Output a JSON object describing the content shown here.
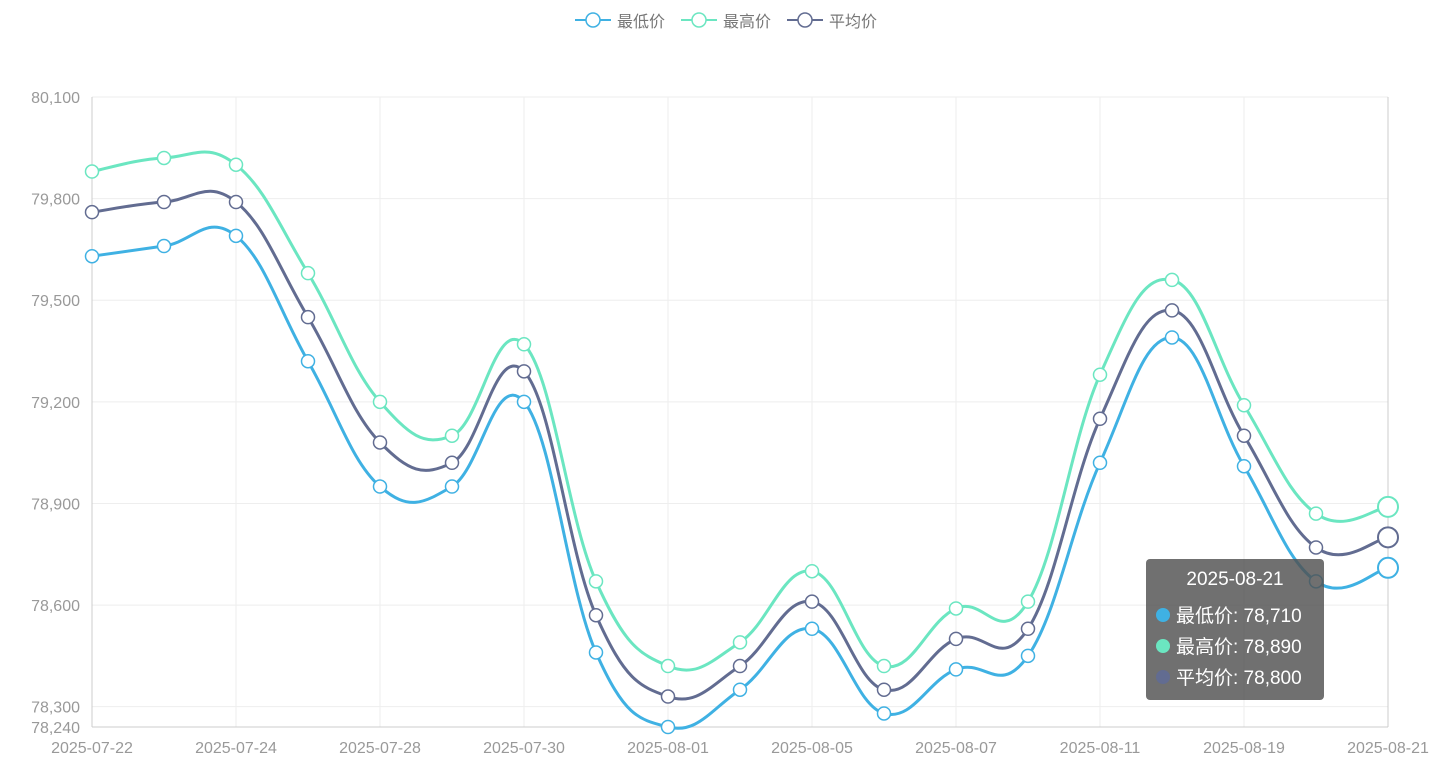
{
  "chart_data": {
    "type": "line",
    "smooth": true,
    "x": [
      "2025-07-22",
      "2025-07-23",
      "2025-07-24",
      "2025-07-25",
      "2025-07-28",
      "2025-07-29",
      "2025-07-30",
      "2025-07-31",
      "2025-08-01",
      "2025-08-04",
      "2025-08-05",
      "2025-08-06",
      "2025-08-07",
      "2025-08-08",
      "2025-08-11",
      "2025-08-18",
      "2025-08-19",
      "2025-08-20",
      "2025-08-21"
    ],
    "xticks": [
      "2025-07-22",
      "2025-07-24",
      "2025-07-28",
      "2025-07-30",
      "2025-08-01",
      "2025-08-05",
      "2025-08-07",
      "2025-08-11",
      "2025-08-19",
      "2025-08-21"
    ],
    "yticks": [
      "80,100",
      "79,800",
      "79,500",
      "79,200",
      "78,900",
      "78,600",
      "78,300",
      "78,240"
    ],
    "ylim": [
      78240,
      80100
    ],
    "grid": true,
    "legend_position": "top-center",
    "series": [
      {
        "name": "最低价",
        "color": "#3fb1e3",
        "values": [
          79630,
          79660,
          79690,
          79320,
          78950,
          78950,
          79200,
          78460,
          78240,
          78350,
          78530,
          78280,
          78410,
          78450,
          79020,
          79390,
          79010,
          78670,
          78710
        ]
      },
      {
        "name": "最高价",
        "color": "#6be6c1",
        "values": [
          79880,
          79920,
          79900,
          79580,
          79200,
          79100,
          79370,
          78670,
          78420,
          78490,
          78700,
          78420,
          78590,
          78610,
          79280,
          79560,
          79190,
          78870,
          78890
        ]
      },
      {
        "name": "平均价",
        "color": "#626c91",
        "values": [
          79760,
          79790,
          79790,
          79450,
          79080,
          79020,
          79290,
          78570,
          78330,
          78420,
          78610,
          78350,
          78500,
          78530,
          79150,
          79470,
          79100,
          78770,
          78800
        ]
      }
    ],
    "tooltip": {
      "title": "2025-08-21",
      "rows": [
        {
          "label": "最低价: 78,710",
          "color": "#3fb1e3"
        },
        {
          "label": "最高价: 78,890",
          "color": "#6be6c1"
        },
        {
          "label": "平均价: 78,800",
          "color": "#626c91"
        }
      ]
    }
  }
}
